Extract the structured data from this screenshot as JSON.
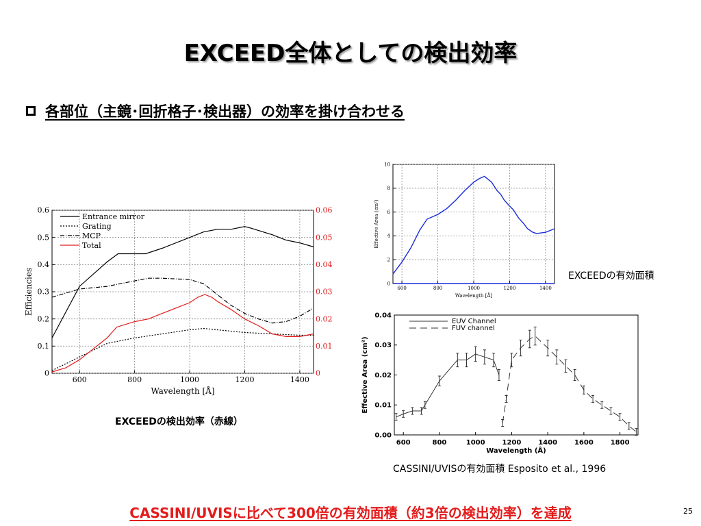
{
  "slide": {
    "title": "EXCEED全体としての検出効率",
    "bullet": "各部位（主鏡･回折格子･検出器）の効率を掛け合わせる",
    "caption_left": "EXCEEDの検出効率（赤線）",
    "caption_right_top": "EXCEEDの有効面積",
    "caption_right_bottom": "CASSINI/UVISの有効面積 Esposito et al., 1996",
    "conclusion": "CASSINI/UVISに比べて300倍の有効面積（約3倍の検出効率）を達成",
    "page_number": "25"
  },
  "colors": {
    "accent": "#e31b1b",
    "blue_line": "#1a2bdb"
  },
  "chart_data": [
    {
      "type": "line",
      "title": "",
      "xlabel": "Wavelength [Å]",
      "ylabel": "Efficiencies",
      "xlim": [
        500,
        1450
      ],
      "ylim": [
        0,
        0.6
      ],
      "y2lim": [
        0,
        0.06
      ],
      "x_ticks": [
        "600",
        "800",
        "1000",
        "1200",
        "1400"
      ],
      "y_ticks": [
        "0",
        "0.1",
        "0.2",
        "0.3",
        "0.4",
        "0.5",
        "0.6"
      ],
      "y2_ticks": [
        "0",
        "0.01",
        "0.02",
        "0.03",
        "0.04",
        "0.05",
        "0.06"
      ],
      "grid": true,
      "legend": "top-left",
      "series": [
        {
          "name": "Entrance mirror",
          "style": "solid",
          "color": "#000000",
          "x": [
            500,
            600,
            700,
            740,
            800,
            840,
            900,
            1000,
            1050,
            1100,
            1150,
            1200,
            1220,
            1300,
            1350,
            1400,
            1450
          ],
          "y": [
            0.13,
            0.32,
            0.41,
            0.44,
            0.44,
            0.44,
            0.46,
            0.5,
            0.52,
            0.53,
            0.53,
            0.54,
            0.535,
            0.51,
            0.49,
            0.48,
            0.465
          ]
        },
        {
          "name": "Grating",
          "style": "dotted",
          "color": "#000000",
          "x": [
            500,
            600,
            700,
            750,
            800,
            900,
            1000,
            1050,
            1100,
            1200,
            1300,
            1400,
            1450
          ],
          "y": [
            0.01,
            0.06,
            0.11,
            0.12,
            0.13,
            0.145,
            0.16,
            0.165,
            0.16,
            0.15,
            0.145,
            0.14,
            0.14
          ]
        },
        {
          "name": "MCP",
          "style": "dashdot",
          "color": "#000000",
          "x": [
            500,
            600,
            700,
            800,
            850,
            900,
            1000,
            1050,
            1100,
            1150,
            1200,
            1250,
            1300,
            1350,
            1400,
            1450
          ],
          "y": [
            0.28,
            0.31,
            0.32,
            0.34,
            0.35,
            0.35,
            0.345,
            0.33,
            0.29,
            0.25,
            0.22,
            0.2,
            0.185,
            0.19,
            0.21,
            0.24
          ]
        },
        {
          "name": "Total",
          "style": "solid",
          "color": "#e31b1b",
          "x": [
            500,
            550,
            600,
            650,
            700,
            735,
            800,
            850,
            900,
            950,
            1000,
            1030,
            1055,
            1080,
            1100,
            1150,
            1200,
            1250,
            1300,
            1350,
            1400,
            1450
          ],
          "y": [
            0.005,
            0.02,
            0.05,
            0.09,
            0.13,
            0.17,
            0.19,
            0.2,
            0.22,
            0.24,
            0.26,
            0.28,
            0.29,
            0.28,
            0.265,
            0.235,
            0.2,
            0.175,
            0.145,
            0.135,
            0.135,
            0.145
          ]
        }
      ]
    },
    {
      "type": "line",
      "title": "",
      "xlabel": "Wavelength [Å]",
      "ylabel": "Effective Area (cm²)",
      "xlim": [
        550,
        1450
      ],
      "ylim": [
        0,
        10
      ],
      "x_ticks": [
        "600",
        "800",
        "1000",
        "1200",
        "1400"
      ],
      "y_ticks": [
        "0",
        "2",
        "4",
        "6",
        "8",
        "10"
      ],
      "grid": true,
      "series": [
        {
          "name": "",
          "color": "#1a2bdb",
          "x": [
            550,
            600,
            650,
            700,
            740,
            800,
            850,
            900,
            950,
            1000,
            1030,
            1060,
            1100,
            1130,
            1150,
            1170,
            1200,
            1220,
            1250,
            1280,
            1300,
            1330,
            1350,
            1400,
            1450
          ],
          "y": [
            0.8,
            1.8,
            3.0,
            4.5,
            5.4,
            5.8,
            6.3,
            7.0,
            7.8,
            8.5,
            8.8,
            9.0,
            8.5,
            7.8,
            7.5,
            7.0,
            6.5,
            6.2,
            5.5,
            5.0,
            4.6,
            4.3,
            4.2,
            4.3,
            4.6
          ]
        },
        {
          "name": "",
          "color": "#1a2bdb",
          "x": [
            550,
            1450
          ],
          "y": [
            0,
            0
          ]
        }
      ]
    },
    {
      "type": "line",
      "title": "",
      "xlabel": "Wavelength (Å)",
      "ylabel": "Effective Area (cm²)",
      "xlim": [
        550,
        1900
      ],
      "ylim": [
        0,
        0.04
      ],
      "x_ticks": [
        "600",
        "800",
        "1000",
        "1200",
        "1400",
        "1600",
        "1800"
      ],
      "y_ticks": [
        "0.00",
        "0.01",
        "0.02",
        "0.03",
        "0.04"
      ],
      "grid": false,
      "legend": "top-left",
      "series": [
        {
          "name": "EUV Channel",
          "style": "solid",
          "color": "#333333",
          "x": [
            560,
            600,
            650,
            700,
            720,
            800,
            900,
            950,
            1000,
            1050,
            1100,
            1130
          ],
          "y": [
            0.006,
            0.007,
            0.008,
            0.008,
            0.01,
            0.018,
            0.025,
            0.025,
            0.027,
            0.026,
            0.025,
            0.02
          ]
        },
        {
          "name": "FUV channel",
          "style": "dashed",
          "color": "#333333",
          "x": [
            1150,
            1170,
            1200,
            1250,
            1300,
            1330,
            1400,
            1450,
            1500,
            1550,
            1600,
            1650,
            1700,
            1750,
            1800,
            1850,
            1890
          ],
          "y": [
            0.004,
            0.012,
            0.025,
            0.029,
            0.032,
            0.033,
            0.029,
            0.026,
            0.023,
            0.02,
            0.015,
            0.012,
            0.01,
            0.008,
            0.006,
            0.003,
            0.001
          ]
        }
      ]
    }
  ]
}
